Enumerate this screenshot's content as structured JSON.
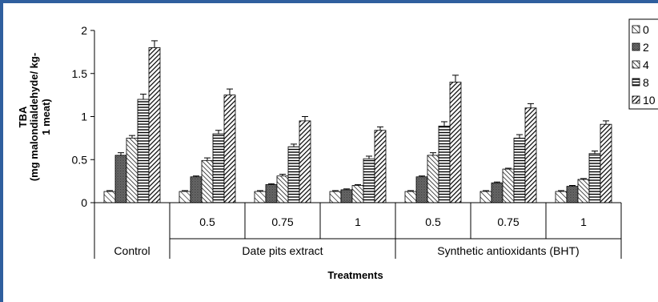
{
  "chart_data": {
    "type": "bar",
    "ylabel_line1": "TBA",
    "ylabel_line2": "(mg malondialdehyde/ kg-",
    "ylabel_line3": "1 meat)",
    "xlabel": "Treatments",
    "ylim": [
      0,
      2
    ],
    "yticks": [
      "0",
      "0.5",
      "1",
      "1.5",
      "2"
    ],
    "ytick_values": [
      0,
      0.5,
      1,
      1.5,
      2
    ],
    "categories": [
      "",
      "0.5",
      "0.75",
      "1",
      "0.5",
      "0.75",
      "1"
    ],
    "groups": [
      {
        "label": "Control",
        "span": [
          0,
          0
        ]
      },
      {
        "label": "Date pits extract",
        "span": [
          1,
          3
        ]
      },
      {
        "label": "Synthetic antioxidants (BHT)",
        "span": [
          4,
          6
        ]
      }
    ],
    "series": [
      {
        "name": "0",
        "values": [
          0.13,
          0.13,
          0.13,
          0.13,
          0.13,
          0.13,
          0.13
        ],
        "errors": [
          0.01,
          0.01,
          0.01,
          0.01,
          0.01,
          0.01,
          0.01
        ],
        "pattern": "diag-light"
      },
      {
        "name": "2",
        "values": [
          0.55,
          0.3,
          0.21,
          0.15,
          0.3,
          0.23,
          0.19
        ],
        "errors": [
          0.03,
          0.01,
          0.01,
          0.01,
          0.01,
          0.01,
          0.01
        ],
        "pattern": "dots"
      },
      {
        "name": "4",
        "values": [
          0.75,
          0.49,
          0.31,
          0.2,
          0.55,
          0.39,
          0.27
        ],
        "errors": [
          0.03,
          0.03,
          0.02,
          0.01,
          0.03,
          0.01,
          0.01
        ],
        "pattern": "diag-wide"
      },
      {
        "name": "8",
        "values": [
          1.2,
          0.8,
          0.65,
          0.51,
          0.89,
          0.75,
          0.57
        ],
        "errors": [
          0.06,
          0.04,
          0.03,
          0.03,
          0.05,
          0.04,
          0.03
        ],
        "pattern": "horizontal"
      },
      {
        "name": "10",
        "values": [
          1.8,
          1.25,
          0.95,
          0.84,
          1.4,
          1.1,
          0.91
        ],
        "errors": [
          0.08,
          0.07,
          0.05,
          0.04,
          0.08,
          0.05,
          0.04
        ],
        "pattern": "diag-dense"
      }
    ],
    "legend_position": "top-right",
    "grid": false
  }
}
